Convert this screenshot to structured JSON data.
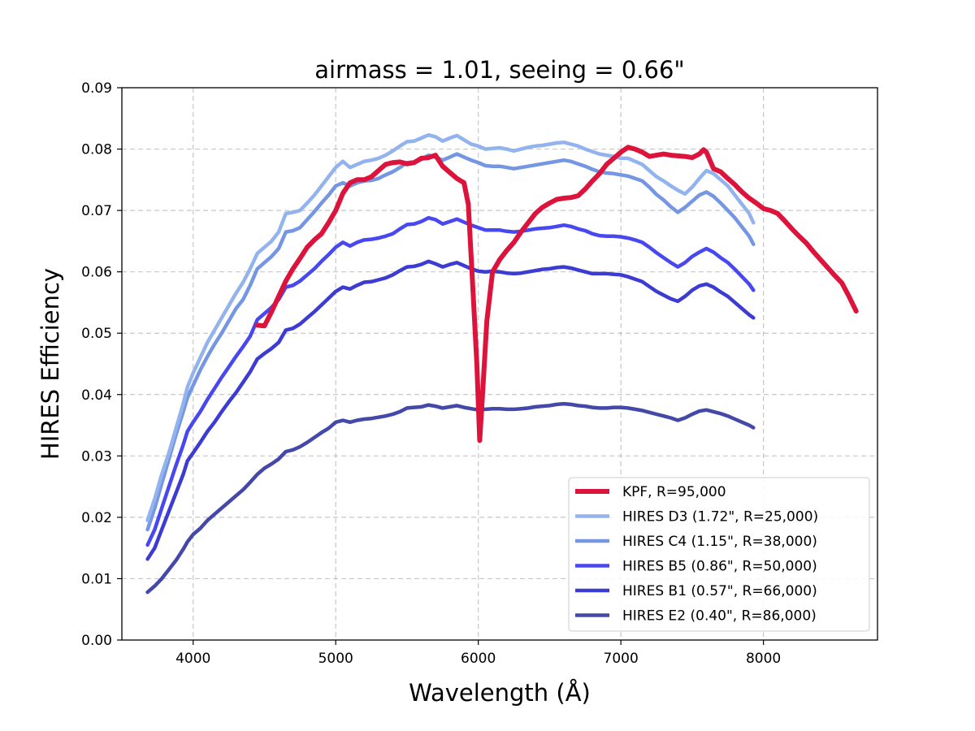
{
  "chart_data": {
    "type": "line",
    "title": "airmass = 1.01, seeing = 0.66\"",
    "xlabel": "Wavelength (Å)",
    "ylabel": "HIRES Efficiency",
    "xlim": [
      3500,
      8800
    ],
    "ylim": [
      0.0,
      0.09
    ],
    "xticks": [
      4000,
      5000,
      6000,
      7000,
      8000
    ],
    "yticks": [
      0.0,
      0.01,
      0.02,
      0.03,
      0.04,
      0.05,
      0.06,
      0.07,
      0.08,
      0.09
    ],
    "xtick_labels": [
      "4000",
      "5000",
      "6000",
      "7000",
      "8000"
    ],
    "ytick_labels": [
      "0.00",
      "0.01",
      "0.02",
      "0.03",
      "0.04",
      "0.05",
      "0.06",
      "0.07",
      "0.08",
      "0.09"
    ],
    "grid": true,
    "legend_position": "lower-right",
    "series": [
      {
        "name": "KPF, R=95,000",
        "color": "#dc143c",
        "width": 6,
        "x": [
          4450,
          4500,
          4550,
          4600,
          4650,
          4700,
          4750,
          4800,
          4850,
          4900,
          4950,
          5000,
          5050,
          5100,
          5150,
          5200,
          5250,
          5300,
          5350,
          5400,
          5450,
          5500,
          5550,
          5600,
          5650,
          5700,
          5750,
          5800,
          5850,
          5900,
          5930,
          5960,
          5990,
          6010,
          6030,
          6060,
          6100,
          6150,
          6200,
          6250,
          6300,
          6350,
          6400,
          6450,
          6500,
          6550,
          6600,
          6650,
          6700,
          6750,
          6800,
          6850,
          6900,
          6950,
          7000,
          7050,
          7100,
          7150,
          7200,
          7250,
          7300,
          7350,
          7400,
          7450,
          7500,
          7550,
          7580,
          7600,
          7650,
          7700,
          7750,
          7800,
          7850,
          7900,
          7950,
          8000,
          8050,
          8100,
          8150,
          8200,
          8250,
          8300,
          8350,
          8400,
          8450,
          8500,
          8550,
          8600,
          8650
        ],
        "y": [
          0.0513,
          0.0512,
          0.0535,
          0.056,
          0.0585,
          0.0605,
          0.0622,
          0.064,
          0.0652,
          0.0662,
          0.068,
          0.07,
          0.0728,
          0.0745,
          0.075,
          0.075,
          0.0755,
          0.0765,
          0.0775,
          0.0778,
          0.0779,
          0.0776,
          0.0778,
          0.0785,
          0.0786,
          0.079,
          0.0772,
          0.0762,
          0.0752,
          0.0745,
          0.071,
          0.058,
          0.045,
          0.0325,
          0.04,
          0.052,
          0.06,
          0.062,
          0.0635,
          0.0648,
          0.0665,
          0.068,
          0.0695,
          0.0705,
          0.0712,
          0.0718,
          0.072,
          0.0721,
          0.0724,
          0.0735,
          0.0748,
          0.076,
          0.0775,
          0.0785,
          0.0795,
          0.0803,
          0.08,
          0.0795,
          0.0788,
          0.079,
          0.0792,
          0.079,
          0.0789,
          0.0788,
          0.0786,
          0.0792,
          0.0799,
          0.0795,
          0.0768,
          0.0763,
          0.0752,
          0.0742,
          0.073,
          0.072,
          0.0712,
          0.0703,
          0.07,
          0.0695,
          0.0683,
          0.067,
          0.0658,
          0.0647,
          0.0633,
          0.062,
          0.0607,
          0.0594,
          0.0582,
          0.056,
          0.0536
        ]
      },
      {
        "name": "HIRES D3 (1.72\", R=25,000)",
        "color": "#93b3ee",
        "width": 4.5,
        "x": [
          3680,
          3730,
          3780,
          3830,
          3880,
          3930,
          3960,
          4000,
          4050,
          4100,
          4150,
          4200,
          4250,
          4300,
          4350,
          4400,
          4450,
          4500,
          4550,
          4600,
          4650,
          4700,
          4750,
          4800,
          4850,
          4900,
          4950,
          5000,
          5050,
          5100,
          5150,
          5200,
          5250,
          5300,
          5350,
          5400,
          5450,
          5500,
          5550,
          5600,
          5650,
          5700,
          5750,
          5800,
          5850,
          5900,
          5950,
          6000,
          6050,
          6100,
          6150,
          6200,
          6250,
          6300,
          6350,
          6400,
          6450,
          6500,
          6550,
          6600,
          6650,
          6700,
          6750,
          6800,
          6850,
          6900,
          6950,
          7000,
          7050,
          7100,
          7150,
          7200,
          7250,
          7300,
          7350,
          7400,
          7450,
          7500,
          7550,
          7600,
          7650,
          7700,
          7750,
          7800,
          7850,
          7900,
          7930
        ],
        "y": [
          0.0195,
          0.023,
          0.027,
          0.0305,
          0.0345,
          0.0385,
          0.0412,
          0.0435,
          0.046,
          0.0485,
          0.0505,
          0.0525,
          0.0545,
          0.0565,
          0.0583,
          0.0605,
          0.063,
          0.064,
          0.065,
          0.0665,
          0.0695,
          0.0697,
          0.07,
          0.0712,
          0.0725,
          0.074,
          0.0755,
          0.077,
          0.078,
          0.077,
          0.0775,
          0.078,
          0.0782,
          0.0785,
          0.079,
          0.0797,
          0.0805,
          0.0812,
          0.0813,
          0.0818,
          0.0823,
          0.082,
          0.0813,
          0.0818,
          0.0822,
          0.0815,
          0.0808,
          0.0805,
          0.08,
          0.0801,
          0.0802,
          0.08,
          0.0797,
          0.08,
          0.0803,
          0.0805,
          0.0806,
          0.0808,
          0.081,
          0.0811,
          0.0808,
          0.0805,
          0.08,
          0.0796,
          0.0792,
          0.079,
          0.0788,
          0.0785,
          0.0785,
          0.078,
          0.0775,
          0.0765,
          0.0755,
          0.0748,
          0.074,
          0.0733,
          0.0727,
          0.0738,
          0.0752,
          0.0765,
          0.076,
          0.075,
          0.074,
          0.0725,
          0.071,
          0.0695,
          0.068
        ]
      },
      {
        "name": "HIRES C4 (1.15\", R=38,000)",
        "color": "#7496e3",
        "width": 4.5,
        "x": [
          3680,
          3730,
          3780,
          3830,
          3880,
          3930,
          3960,
          4000,
          4050,
          4100,
          4150,
          4200,
          4250,
          4300,
          4350,
          4400,
          4450,
          4500,
          4550,
          4600,
          4650,
          4700,
          4750,
          4800,
          4850,
          4900,
          4950,
          5000,
          5050,
          5100,
          5150,
          5200,
          5250,
          5300,
          5350,
          5400,
          5450,
          5500,
          5550,
          5600,
          5650,
          5700,
          5750,
          5800,
          5850,
          5900,
          5950,
          6000,
          6050,
          6100,
          6150,
          6200,
          6250,
          6300,
          6350,
          6400,
          6450,
          6500,
          6550,
          6600,
          6650,
          6700,
          6750,
          6800,
          6850,
          6900,
          6950,
          7000,
          7050,
          7100,
          7150,
          7200,
          7250,
          7300,
          7350,
          7400,
          7450,
          7500,
          7550,
          7600,
          7650,
          7700,
          7750,
          7800,
          7850,
          7900,
          7930
        ],
        "y": [
          0.018,
          0.0215,
          0.0255,
          0.0295,
          0.0335,
          0.0372,
          0.0395,
          0.0415,
          0.044,
          0.0462,
          0.0482,
          0.05,
          0.052,
          0.054,
          0.0555,
          0.0578,
          0.0605,
          0.0615,
          0.0625,
          0.0638,
          0.0665,
          0.0667,
          0.0672,
          0.0685,
          0.0698,
          0.0712,
          0.0725,
          0.074,
          0.0745,
          0.074,
          0.0745,
          0.0748,
          0.0749,
          0.0752,
          0.0758,
          0.0763,
          0.077,
          0.0778,
          0.0779,
          0.0783,
          0.079,
          0.0787,
          0.0782,
          0.0787,
          0.0792,
          0.0787,
          0.0782,
          0.0778,
          0.0773,
          0.0772,
          0.0772,
          0.077,
          0.0768,
          0.077,
          0.0772,
          0.0774,
          0.0776,
          0.0778,
          0.078,
          0.0782,
          0.078,
          0.0776,
          0.0772,
          0.0767,
          0.0763,
          0.0761,
          0.076,
          0.0758,
          0.0756,
          0.0752,
          0.0748,
          0.0738,
          0.0726,
          0.0717,
          0.0706,
          0.0697,
          0.0705,
          0.0715,
          0.0725,
          0.073,
          0.0723,
          0.0712,
          0.07,
          0.0688,
          0.0673,
          0.0658,
          0.0645
        ]
      },
      {
        "name": "HIRES B5 (0.86\", R=50,000)",
        "color": "#4848f0",
        "width": 4.5,
        "x": [
          3680,
          3730,
          3780,
          3830,
          3880,
          3930,
          3960,
          4000,
          4050,
          4100,
          4150,
          4200,
          4250,
          4300,
          4350,
          4400,
          4450,
          4500,
          4550,
          4600,
          4650,
          4700,
          4750,
          4800,
          4850,
          4900,
          4950,
          5000,
          5050,
          5100,
          5150,
          5200,
          5250,
          5300,
          5350,
          5400,
          5450,
          5500,
          5550,
          5600,
          5650,
          5700,
          5750,
          5800,
          5850,
          5900,
          5950,
          6000,
          6050,
          6100,
          6150,
          6200,
          6250,
          6300,
          6350,
          6400,
          6450,
          6500,
          6550,
          6600,
          6650,
          6700,
          6750,
          6800,
          6850,
          6900,
          6950,
          7000,
          7050,
          7100,
          7150,
          7200,
          7250,
          7300,
          7350,
          7400,
          7450,
          7500,
          7550,
          7600,
          7650,
          7700,
          7750,
          7800,
          7850,
          7900,
          7930
        ],
        "y": [
          0.0155,
          0.018,
          0.0215,
          0.025,
          0.0285,
          0.0318,
          0.034,
          0.0355,
          0.0372,
          0.0392,
          0.041,
          0.0428,
          0.0445,
          0.0462,
          0.0478,
          0.0495,
          0.0522,
          0.0532,
          0.0542,
          0.0555,
          0.0575,
          0.0578,
          0.0585,
          0.0595,
          0.0605,
          0.0617,
          0.0628,
          0.064,
          0.0648,
          0.0642,
          0.0648,
          0.0652,
          0.0653,
          0.0655,
          0.0658,
          0.0662,
          0.067,
          0.0677,
          0.0678,
          0.0682,
          0.0688,
          0.0685,
          0.0678,
          0.0682,
          0.0686,
          0.0681,
          0.0676,
          0.0672,
          0.0668,
          0.0668,
          0.0668,
          0.0666,
          0.0665,
          0.0666,
          0.0668,
          0.067,
          0.0671,
          0.0672,
          0.0674,
          0.0676,
          0.0674,
          0.067,
          0.0667,
          0.0662,
          0.0659,
          0.0658,
          0.0658,
          0.0657,
          0.0655,
          0.0652,
          0.0648,
          0.064,
          0.0631,
          0.0623,
          0.0615,
          0.0608,
          0.0615,
          0.0625,
          0.0632,
          0.0638,
          0.0632,
          0.0623,
          0.0615,
          0.0604,
          0.0592,
          0.058,
          0.057
        ]
      },
      {
        "name": "HIRES B1 (0.57\", R=66,000)",
        "color": "#3c3cd2",
        "width": 4.5,
        "x": [
          3680,
          3730,
          3780,
          3830,
          3880,
          3930,
          3960,
          4000,
          4050,
          4100,
          4150,
          4200,
          4250,
          4300,
          4350,
          4400,
          4450,
          4500,
          4550,
          4600,
          4650,
          4700,
          4750,
          4800,
          4850,
          4900,
          4950,
          5000,
          5050,
          5100,
          5150,
          5200,
          5250,
          5300,
          5350,
          5400,
          5450,
          5500,
          5550,
          5600,
          5650,
          5700,
          5750,
          5800,
          5850,
          5900,
          5950,
          6000,
          6050,
          6100,
          6150,
          6200,
          6250,
          6300,
          6350,
          6400,
          6450,
          6500,
          6550,
          6600,
          6650,
          6700,
          6750,
          6800,
          6850,
          6900,
          6950,
          7000,
          7050,
          7100,
          7150,
          7200,
          7250,
          7300,
          7350,
          7400,
          7450,
          7500,
          7550,
          7600,
          7650,
          7700,
          7750,
          7800,
          7850,
          7900,
          7930
        ],
        "y": [
          0.0132,
          0.015,
          0.018,
          0.021,
          0.024,
          0.027,
          0.0292,
          0.0305,
          0.0322,
          0.034,
          0.0355,
          0.0372,
          0.0388,
          0.0403,
          0.042,
          0.0437,
          0.0458,
          0.0467,
          0.0475,
          0.0485,
          0.0505,
          0.0508,
          0.0515,
          0.0525,
          0.0535,
          0.0546,
          0.0557,
          0.0568,
          0.0575,
          0.0572,
          0.0578,
          0.0583,
          0.0584,
          0.0587,
          0.059,
          0.0595,
          0.0602,
          0.0608,
          0.0609,
          0.0612,
          0.0617,
          0.0613,
          0.0608,
          0.0612,
          0.0615,
          0.061,
          0.0605,
          0.0601,
          0.06,
          0.0601,
          0.06,
          0.0598,
          0.0597,
          0.0598,
          0.06,
          0.0602,
          0.0604,
          0.0605,
          0.0607,
          0.0608,
          0.0606,
          0.0603,
          0.06,
          0.0597,
          0.0597,
          0.0597,
          0.0596,
          0.0595,
          0.0592,
          0.0588,
          0.0584,
          0.0576,
          0.0568,
          0.0562,
          0.0556,
          0.0552,
          0.056,
          0.057,
          0.0577,
          0.058,
          0.0575,
          0.0567,
          0.056,
          0.055,
          0.054,
          0.053,
          0.0525
        ]
      },
      {
        "name": "HIRES E2 (0.40\", R=86,000)",
        "color": "#4448a8",
        "width": 4.5,
        "x": [
          3680,
          3730,
          3780,
          3830,
          3880,
          3930,
          3960,
          4000,
          4050,
          4100,
          4150,
          4200,
          4250,
          4300,
          4350,
          4400,
          4450,
          4500,
          4550,
          4600,
          4650,
          4700,
          4750,
          4800,
          4850,
          4900,
          4950,
          5000,
          5050,
          5100,
          5150,
          5200,
          5250,
          5300,
          5350,
          5400,
          5450,
          5500,
          5550,
          5600,
          5650,
          5700,
          5750,
          5800,
          5850,
          5900,
          5950,
          6000,
          6050,
          6100,
          6150,
          6200,
          6250,
          6300,
          6350,
          6400,
          6450,
          6500,
          6550,
          6600,
          6650,
          6700,
          6750,
          6800,
          6850,
          6900,
          6950,
          7000,
          7050,
          7100,
          7150,
          7200,
          7250,
          7300,
          7350,
          7400,
          7450,
          7500,
          7550,
          7600,
          7650,
          7700,
          7750,
          7800,
          7850,
          7900,
          7930
        ],
        "y": [
          0.0078,
          0.0088,
          0.01,
          0.0115,
          0.013,
          0.0148,
          0.016,
          0.0172,
          0.0182,
          0.0195,
          0.0205,
          0.0215,
          0.0225,
          0.0235,
          0.0245,
          0.0257,
          0.027,
          0.028,
          0.0287,
          0.0295,
          0.0307,
          0.031,
          0.0315,
          0.0322,
          0.033,
          0.0338,
          0.0345,
          0.0355,
          0.0358,
          0.0355,
          0.0358,
          0.036,
          0.0361,
          0.0363,
          0.0365,
          0.0368,
          0.0372,
          0.0378,
          0.0379,
          0.038,
          0.0383,
          0.0381,
          0.0378,
          0.038,
          0.0382,
          0.0379,
          0.0377,
          0.0375,
          0.0376,
          0.0377,
          0.0377,
          0.0376,
          0.0376,
          0.0377,
          0.0378,
          0.038,
          0.0381,
          0.0382,
          0.0384,
          0.0385,
          0.0384,
          0.0382,
          0.0381,
          0.0379,
          0.0378,
          0.0378,
          0.0379,
          0.0379,
          0.0378,
          0.0376,
          0.0374,
          0.0371,
          0.0368,
          0.0365,
          0.0362,
          0.0358,
          0.0362,
          0.0368,
          0.0373,
          0.0375,
          0.0372,
          0.0369,
          0.0365,
          0.036,
          0.0355,
          0.035,
          0.0346
        ]
      }
    ]
  }
}
